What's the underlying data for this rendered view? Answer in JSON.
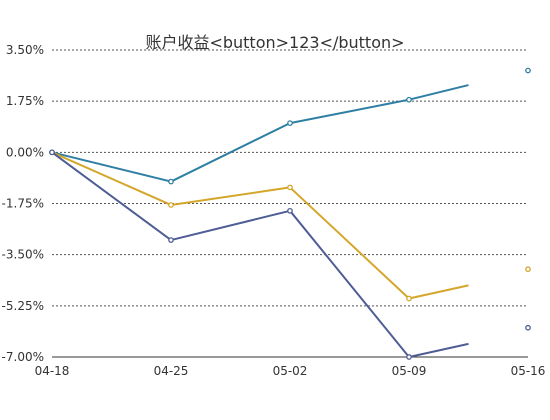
{
  "chart_data": {
    "type": "line",
    "title": "账户收益<button>123</button>",
    "x": [
      "04-18",
      "04-25",
      "05-02",
      "05-09",
      "05-16"
    ],
    "y_ticks": [
      "3.50%",
      "1.75%",
      "0.00%",
      "-1.75%",
      "-3.50%",
      "-5.25%",
      "-7.00%"
    ],
    "ylim": [
      -7.0,
      3.5
    ],
    "grid": true,
    "legend": "none",
    "series": [
      {
        "color": "#2e7fa3",
        "points": [
          [
            0,
            0.0
          ],
          [
            7,
            -1.0
          ],
          [
            14,
            1.0
          ],
          [
            21,
            1.8
          ],
          [
            24.5,
            2.3
          ]
        ],
        "end_marker": [
          28,
          2.8
        ]
      },
      {
        "color": "#d4a62a",
        "points": [
          [
            0,
            0.0
          ],
          [
            7,
            -1.8
          ],
          [
            14,
            -1.2
          ],
          [
            21,
            -5.0
          ],
          [
            24.5,
            -4.55
          ]
        ],
        "end_marker": [
          28,
          -4.0
        ]
      },
      {
        "color": "#4f5d95",
        "points": [
          [
            0,
            0.0
          ],
          [
            7,
            -3.0
          ],
          [
            14,
            -2.0
          ],
          [
            21,
            -7.0
          ],
          [
            24.5,
            -6.55
          ]
        ],
        "end_marker": [
          28,
          -6.0
        ]
      }
    ]
  }
}
